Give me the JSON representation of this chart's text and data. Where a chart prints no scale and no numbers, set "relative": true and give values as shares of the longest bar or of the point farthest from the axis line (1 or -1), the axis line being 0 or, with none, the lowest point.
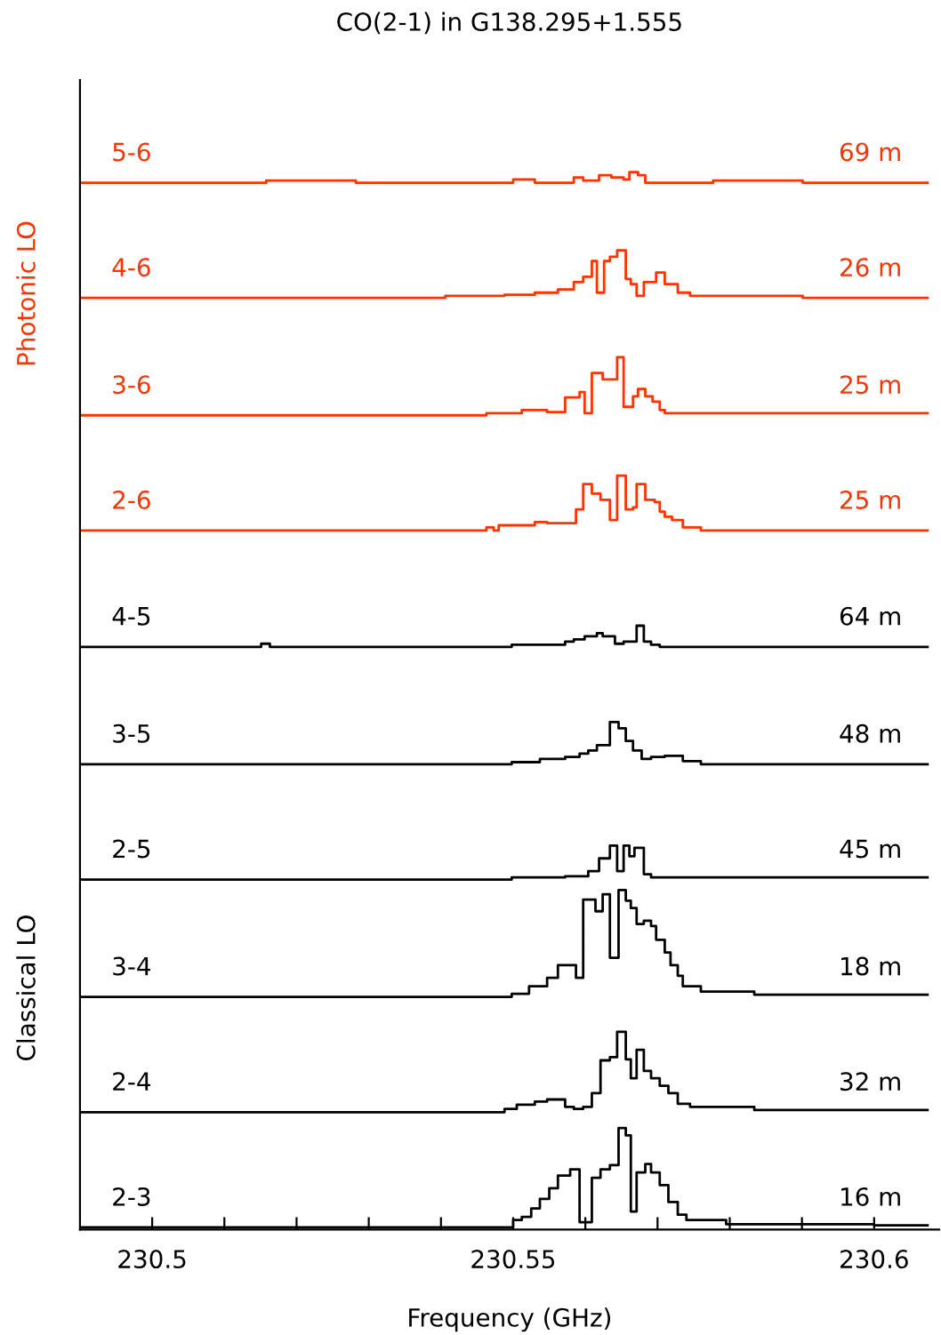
{
  "chart_data": {
    "type": "step",
    "relative": true,
    "title": "CO(2-1) in G138.295+1.555",
    "xlabel": "Frequency (GHz)",
    "xlim": [
      230.49,
      230.609
    ],
    "xticks": [
      230.5,
      {
        "value": 230.51,
        "label": null
      },
      {
        "value": 230.52,
        "label": null
      },
      {
        "value": 230.53,
        "label": null
      },
      {
        "value": 230.54,
        "label": null
      },
      230.55,
      {
        "value": 230.56,
        "label": null
      },
      {
        "value": 230.57,
        "label": null
      },
      {
        "value": 230.58,
        "label": null
      },
      {
        "value": 230.59,
        "label": null
      },
      230.6
    ],
    "grid": false,
    "legend": false,
    "marker": "none",
    "line_style": "solid",
    "series": [
      {
        "name": "5-6",
        "color": "#ff3300",
        "x": [
          230.49,
          230.5158,
          230.5282,
          230.55,
          230.553,
          230.5584,
          230.5597,
          230.5619,
          230.5636,
          230.5653,
          230.5661,
          230.5673,
          230.5683,
          230.5777,
          230.5901,
          230.6074
        ],
        "values": [
          0.99,
          0.992,
          0.99,
          0.993,
          0.99,
          0.995,
          0.992,
          0.997,
          0.995,
          0.993,
          1.0,
          0.997,
          0.99,
          0.992,
          0.99,
          0.99
        ]
      },
      {
        "name": "4-6",
        "color": "#ff3300",
        "x": [
          230.49,
          230.5406,
          230.5488,
          230.553,
          230.5562,
          230.5584,
          230.5597,
          230.5609,
          230.5616,
          230.5626,
          230.5634,
          230.5644,
          230.5656,
          230.5663,
          230.5671,
          230.5681,
          230.5698,
          230.571,
          230.5728,
          230.5745,
          230.5901,
          230.6074
        ],
        "values": [
          0.881,
          0.883,
          0.884,
          0.886,
          0.889,
          0.896,
          0.901,
          0.916,
          0.886,
          0.916,
          0.92,
          0.926,
          0.899,
          0.894,
          0.883,
          0.896,
          0.905,
          0.894,
          0.886,
          0.883,
          0.881,
          0.881
        ]
      },
      {
        "name": "3-6",
        "color": "#ff3300",
        "x": [
          230.49,
          230.5463,
          230.5512,
          230.5547,
          230.5572,
          230.5592,
          230.5599,
          230.5609,
          230.5624,
          230.5644,
          230.5653,
          230.5666,
          230.5673,
          230.5683,
          230.5693,
          230.5703,
          230.571,
          230.5901,
          230.6074
        ],
        "values": [
          0.77,
          0.772,
          0.775,
          0.773,
          0.787,
          0.792,
          0.772,
          0.81,
          0.804,
          0.825,
          0.778,
          0.788,
          0.795,
          0.788,
          0.783,
          0.775,
          0.772,
          0.772,
          0.772
        ]
      },
      {
        "name": "2-6",
        "color": "#ff3300",
        "x": [
          230.49,
          230.5463,
          230.5473,
          230.548,
          230.553,
          230.5547,
          230.5587,
          230.5597,
          230.5609,
          230.5621,
          230.5634,
          230.5644,
          230.5656,
          230.5666,
          230.5671,
          230.5683,
          230.5696,
          230.5703,
          230.571,
          230.572,
          230.5735,
          230.576,
          230.6074
        ],
        "values": [
          0.661,
          0.664,
          0.661,
          0.666,
          0.669,
          0.668,
          0.681,
          0.705,
          0.696,
          0.69,
          0.671,
          0.713,
          0.681,
          0.683,
          0.705,
          0.69,
          0.688,
          0.679,
          0.674,
          0.671,
          0.664,
          0.661,
          0.661
        ]
      },
      {
        "name": "4-5",
        "color": "#000000",
        "x": [
          230.49,
          230.5151,
          230.5163,
          230.5498,
          230.5572,
          230.5584,
          230.5599,
          230.5616,
          230.5624,
          230.5641,
          230.5653,
          230.5671,
          230.5681,
          230.5691,
          230.5703,
          230.6074
        ],
        "values": [
          0.551,
          0.554,
          0.551,
          0.553,
          0.556,
          0.558,
          0.561,
          0.564,
          0.561,
          0.554,
          0.556,
          0.571,
          0.556,
          0.553,
          0.551,
          0.551
        ]
      },
      {
        "name": "3-5",
        "color": "#000000",
        "x": [
          230.49,
          230.5498,
          230.5537,
          230.5572,
          230.5592,
          230.5604,
          230.5616,
          230.5634,
          230.5646,
          230.5656,
          230.5666,
          230.5678,
          230.5691,
          230.571,
          230.5735,
          230.576,
          230.6074
        ],
        "values": [
          0.44,
          0.442,
          0.445,
          0.447,
          0.45,
          0.453,
          0.458,
          0.48,
          0.474,
          0.462,
          0.453,
          0.445,
          0.447,
          0.448,
          0.443,
          0.44,
          0.44
        ]
      },
      {
        "name": "2-5",
        "color": "#000000",
        "x": [
          230.49,
          230.5498,
          230.5572,
          230.5604,
          230.5619,
          230.5634,
          230.5644,
          230.5653,
          230.5661,
          230.5668,
          230.5681,
          230.5691,
          230.6074
        ],
        "values": [
          0.331,
          0.333,
          0.334,
          0.339,
          0.351,
          0.363,
          0.339,
          0.363,
          0.353,
          0.361,
          0.336,
          0.333,
          0.333
        ]
      },
      {
        "name": "3-4",
        "color": "#000000",
        "x": [
          230.49,
          230.5498,
          230.5522,
          230.5547,
          230.5562,
          230.5587,
          230.5597,
          230.5614,
          230.5624,
          230.5634,
          230.5646,
          230.5656,
          230.5663,
          230.5671,
          230.5681,
          230.5691,
          230.5698,
          230.571,
          230.5718,
          230.5728,
          230.5735,
          230.576,
          230.5834,
          230.6074
        ],
        "values": [
          0.22,
          0.223,
          0.23,
          0.238,
          0.25,
          0.238,
          0.312,
          0.301,
          0.317,
          0.257,
          0.321,
          0.311,
          0.304,
          0.289,
          0.292,
          0.287,
          0.274,
          0.262,
          0.25,
          0.24,
          0.23,
          0.225,
          0.222,
          0.222
        ]
      },
      {
        "name": "2-4",
        "color": "#000000",
        "x": [
          230.49,
          230.5488,
          230.5505,
          230.553,
          230.5547,
          230.5572,
          230.5584,
          230.5597,
          230.5609,
          230.5621,
          230.5634,
          230.5644,
          230.5656,
          230.5663,
          230.5671,
          230.5681,
          230.5691,
          230.5703,
          230.5715,
          230.5728,
          230.5745,
          230.5834,
          230.6074
        ],
        "values": [
          0.111,
          0.114,
          0.118,
          0.121,
          0.123,
          0.116,
          0.114,
          0.116,
          0.129,
          0.16,
          0.163,
          0.187,
          0.161,
          0.143,
          0.17,
          0.15,
          0.143,
          0.136,
          0.129,
          0.119,
          0.116,
          0.113,
          0.113
        ]
      },
      {
        "name": "2-3",
        "color": "#000000",
        "x": [
          230.49,
          230.55,
          230.5512,
          230.5525,
          230.5537,
          230.555,
          230.5562,
          230.5579,
          230.5592,
          230.5609,
          230.5621,
          230.5634,
          230.5646,
          230.5656,
          230.5663,
          230.5671,
          230.5683,
          230.5691,
          230.5703,
          230.5715,
          230.5728,
          230.574,
          230.5795,
          230.6,
          230.6074
        ],
        "values": [
          0.002,
          0.009,
          0.012,
          0.02,
          0.029,
          0.039,
          0.051,
          0.057,
          0.007,
          0.049,
          0.057,
          0.061,
          0.096,
          0.089,
          0.017,
          0.054,
          0.062,
          0.054,
          0.042,
          0.026,
          0.014,
          0.009,
          0.005,
          0.004,
          0.004
        ]
      }
    ],
    "annotations": [
      "Photonic LO",
      "Classical LO",
      "69 m",
      "26 m",
      "25 m",
      "25 m",
      "64 m",
      "48 m",
      "45 m",
      "18 m",
      "32 m",
      "16 m"
    ]
  }
}
